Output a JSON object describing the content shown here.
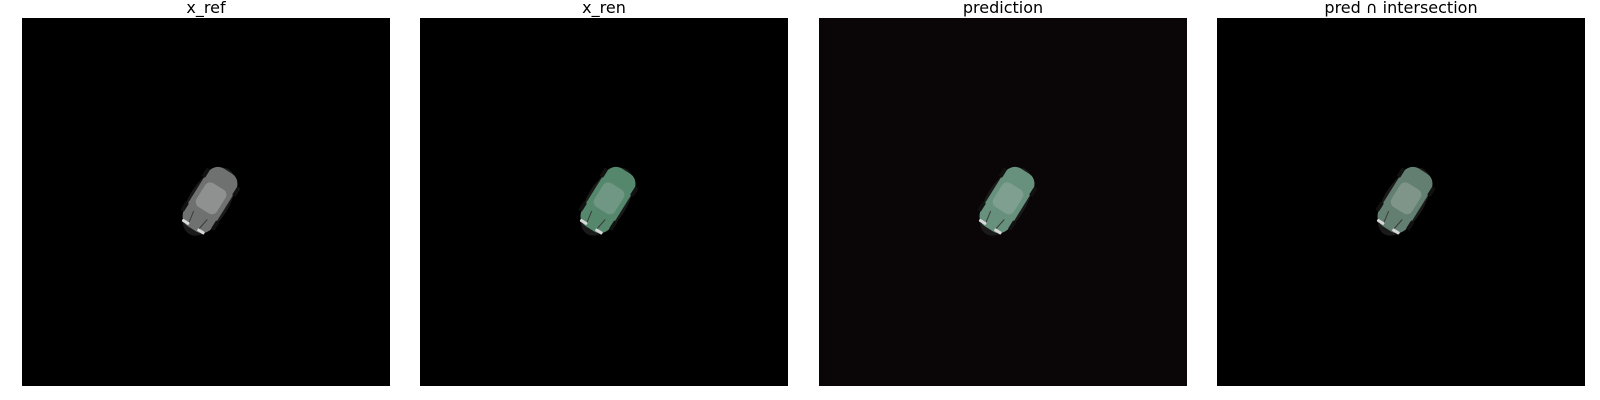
{
  "panels": [
    {
      "title": "x_ref",
      "background": "#000000",
      "car_tint": "#8a8a8a",
      "tint_strength": 0.0
    },
    {
      "title": "x_ren",
      "background": "#000000",
      "car_tint": "#3f9a6a",
      "tint_strength": 0.55
    },
    {
      "title": "prediction",
      "background": "#0a0607",
      "car_tint": "#5fb08a",
      "tint_strength": 0.5
    },
    {
      "title": "pred ∩ intersection",
      "background": "#000000",
      "car_tint": "#4e9a74",
      "tint_strength": 0.35
    }
  ]
}
